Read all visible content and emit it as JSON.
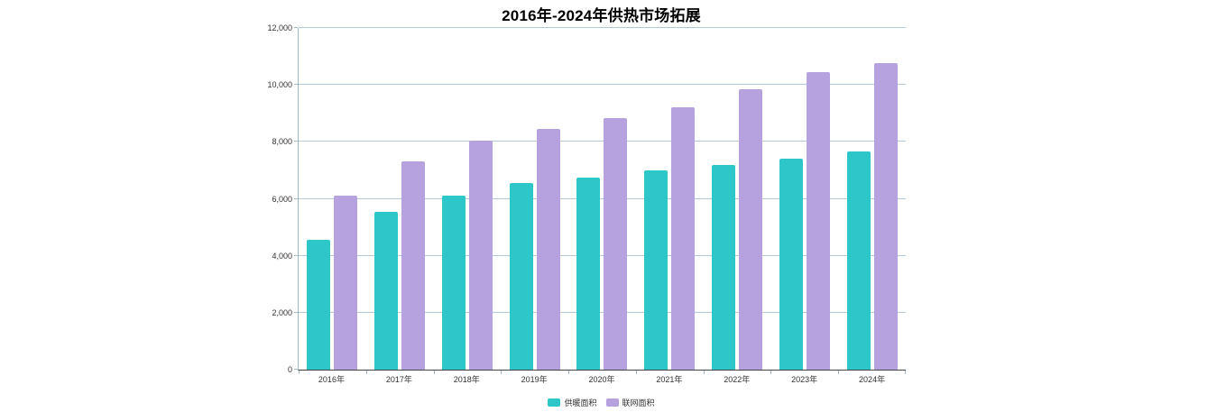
{
  "chart_data": {
    "type": "bar",
    "title": "2016年-2024年供热市场拓展",
    "categories": [
      "2016年",
      "2017年",
      "2018年",
      "2019年",
      "2020年",
      "2021年",
      "2022年",
      "2023年",
      "2024年"
    ],
    "series": [
      {
        "name": "供暖面积",
        "color": "#2ec7c9",
        "values": [
          4550,
          5550,
          6100,
          6550,
          6750,
          7000,
          7200,
          7400,
          7650
        ]
      },
      {
        "name": "联网面积",
        "color": "#b6a2de",
        "values": [
          6100,
          7300,
          8050,
          8450,
          8850,
          9200,
          9850,
          10450,
          10750
        ]
      }
    ],
    "ylim": [
      0,
      12000
    ],
    "ytick_step": 2000,
    "ytick_labels": [
      "0",
      "2,000",
      "4,000",
      "6,000",
      "8,000",
      "10,000",
      "12,000"
    ],
    "grid": true,
    "legend_position": "bottom",
    "colors": {
      "grid_line": "#b4c9d8",
      "y_axis_line": "#9fbcc6",
      "x_axis_line": "#444444",
      "tick": "#9fbcc6",
      "label_text": "#333333",
      "title_text": "#000000",
      "background": "#ffffff"
    }
  }
}
